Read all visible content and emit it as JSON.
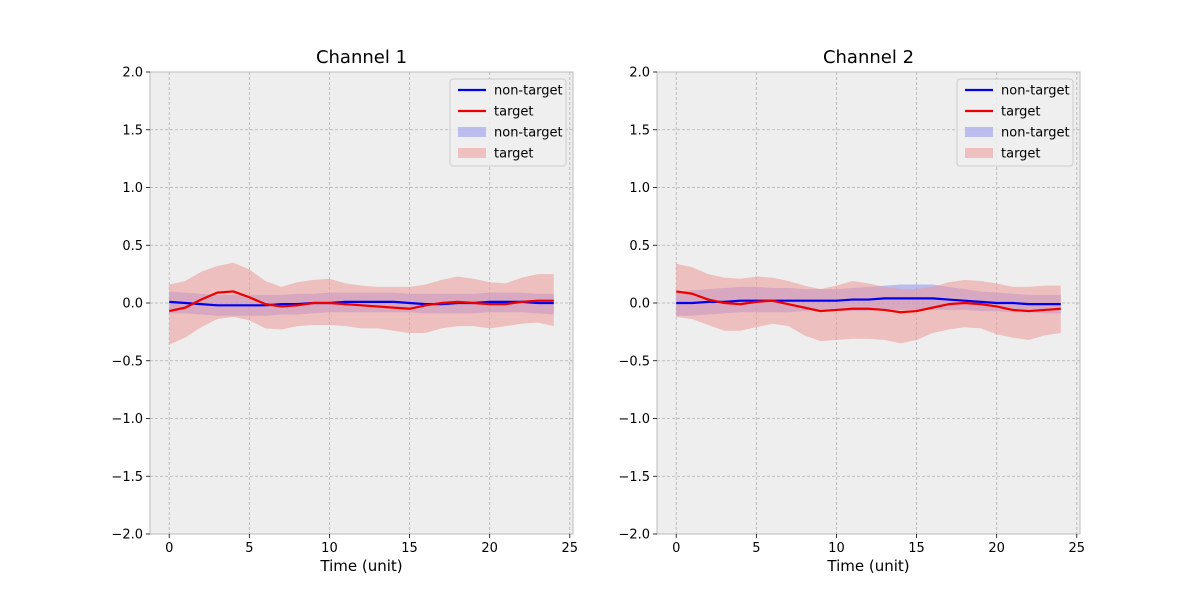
{
  "chart_data": [
    {
      "type": "line",
      "title": "Channel 1",
      "xlabel": "Time (unit)",
      "ylabel": "",
      "xlim": [
        -1.2,
        25.2
      ],
      "ylim": [
        -2.0,
        2.0
      ],
      "xticks": [
        0,
        5,
        10,
        15,
        20,
        25
      ],
      "yticks": [
        -2.0,
        -1.5,
        -1.0,
        -0.5,
        0.0,
        0.5,
        1.0,
        1.5,
        2.0
      ],
      "grid": true,
      "legend": "upper-right",
      "legend_entries": [
        "non-target",
        "target",
        "non-target",
        "target"
      ],
      "x": [
        0,
        1,
        2,
        3,
        4,
        5,
        6,
        7,
        8,
        9,
        10,
        11,
        12,
        13,
        14,
        15,
        16,
        17,
        18,
        19,
        20,
        21,
        22,
        23,
        24
      ],
      "series": [
        {
          "name": "non-target",
          "color": "#0000ee",
          "fill_color": "#9999ee",
          "values": [
            0.01,
            0.0,
            -0.01,
            -0.02,
            -0.02,
            -0.02,
            -0.02,
            -0.01,
            -0.01,
            0.0,
            0.0,
            0.01,
            0.01,
            0.01,
            0.01,
            0.0,
            -0.01,
            -0.01,
            0.0,
            0.0,
            0.01,
            0.01,
            0.01,
            0.0,
            0.0
          ],
          "upper": [
            0.1,
            0.09,
            0.08,
            0.07,
            0.07,
            0.07,
            0.07,
            0.07,
            0.08,
            0.08,
            0.09,
            0.09,
            0.09,
            0.09,
            0.09,
            0.08,
            0.08,
            0.08,
            0.08,
            0.08,
            0.09,
            0.09,
            0.09,
            0.08,
            0.08
          ],
          "lower": [
            -0.09,
            -0.09,
            -0.1,
            -0.11,
            -0.11,
            -0.11,
            -0.11,
            -0.1,
            -0.1,
            -0.09,
            -0.08,
            -0.08,
            -0.08,
            -0.08,
            -0.08,
            -0.08,
            -0.09,
            -0.09,
            -0.09,
            -0.09,
            -0.08,
            -0.08,
            -0.08,
            -0.09,
            -0.1
          ]
        },
        {
          "name": "target",
          "color": "#ee0000",
          "fill_color": "#ee9999",
          "values": [
            -0.07,
            -0.04,
            0.03,
            0.09,
            0.1,
            0.05,
            -0.01,
            -0.03,
            -0.02,
            0.0,
            0.0,
            -0.01,
            -0.02,
            -0.03,
            -0.04,
            -0.05,
            -0.02,
            0.0,
            0.01,
            0.0,
            -0.01,
            -0.01,
            0.01,
            0.02,
            0.02
          ],
          "upper": [
            0.16,
            0.19,
            0.27,
            0.32,
            0.35,
            0.29,
            0.19,
            0.14,
            0.18,
            0.2,
            0.21,
            0.17,
            0.15,
            0.14,
            0.14,
            0.14,
            0.16,
            0.2,
            0.23,
            0.21,
            0.18,
            0.17,
            0.22,
            0.25,
            0.25
          ],
          "lower": [
            -0.36,
            -0.3,
            -0.21,
            -0.14,
            -0.12,
            -0.15,
            -0.22,
            -0.23,
            -0.2,
            -0.19,
            -0.19,
            -0.2,
            -0.22,
            -0.22,
            -0.24,
            -0.26,
            -0.26,
            -0.22,
            -0.2,
            -0.2,
            -0.22,
            -0.2,
            -0.18,
            -0.17,
            -0.2
          ]
        }
      ]
    },
    {
      "type": "line",
      "title": "Channel 2",
      "xlabel": "Time (unit)",
      "ylabel": "",
      "xlim": [
        -1.2,
        25.2
      ],
      "ylim": [
        -2.0,
        2.0
      ],
      "xticks": [
        0,
        5,
        10,
        15,
        20,
        25
      ],
      "yticks": [
        -2.0,
        -1.5,
        -1.0,
        -0.5,
        0.0,
        0.5,
        1.0,
        1.5,
        2.0
      ],
      "grid": true,
      "legend": "upper-right",
      "legend_entries": [
        "non-target",
        "target",
        "non-target",
        "target"
      ],
      "x": [
        0,
        1,
        2,
        3,
        4,
        5,
        6,
        7,
        8,
        9,
        10,
        11,
        12,
        13,
        14,
        15,
        16,
        17,
        18,
        19,
        20,
        21,
        22,
        23,
        24
      ],
      "series": [
        {
          "name": "non-target",
          "color": "#0000ee",
          "fill_color": "#9999ee",
          "values": [
            0.0,
            0.0,
            0.01,
            0.01,
            0.02,
            0.02,
            0.02,
            0.02,
            0.02,
            0.02,
            0.02,
            0.03,
            0.03,
            0.04,
            0.04,
            0.04,
            0.04,
            0.03,
            0.02,
            0.01,
            0.0,
            0.0,
            -0.01,
            -0.01,
            -0.01
          ],
          "upper": [
            0.1,
            0.11,
            0.12,
            0.13,
            0.14,
            0.14,
            0.13,
            0.13,
            0.12,
            0.12,
            0.12,
            0.13,
            0.14,
            0.15,
            0.16,
            0.16,
            0.16,
            0.14,
            0.12,
            0.1,
            0.09,
            0.08,
            0.07,
            0.07,
            0.07
          ],
          "lower": [
            -0.11,
            -0.11,
            -0.1,
            -0.09,
            -0.08,
            -0.08,
            -0.08,
            -0.08,
            -0.07,
            -0.07,
            -0.07,
            -0.07,
            -0.07,
            -0.06,
            -0.06,
            -0.06,
            -0.06,
            -0.06,
            -0.06,
            -0.07,
            -0.07,
            -0.08,
            -0.08,
            -0.09,
            -0.09
          ]
        },
        {
          "name": "target",
          "color": "#ee0000",
          "fill_color": "#ee9999",
          "values": [
            0.1,
            0.08,
            0.03,
            0.0,
            -0.01,
            0.01,
            0.02,
            -0.01,
            -0.04,
            -0.07,
            -0.06,
            -0.05,
            -0.05,
            -0.06,
            -0.08,
            -0.07,
            -0.04,
            -0.01,
            0.0,
            -0.01,
            -0.03,
            -0.06,
            -0.07,
            -0.06,
            -0.05
          ],
          "upper": [
            0.34,
            0.31,
            0.25,
            0.22,
            0.21,
            0.23,
            0.22,
            0.19,
            0.15,
            0.12,
            0.15,
            0.19,
            0.17,
            0.14,
            0.12,
            0.12,
            0.14,
            0.18,
            0.2,
            0.19,
            0.17,
            0.14,
            0.14,
            0.15,
            0.15
          ],
          "lower": [
            -0.12,
            -0.14,
            -0.19,
            -0.24,
            -0.24,
            -0.21,
            -0.18,
            -0.2,
            -0.28,
            -0.33,
            -0.32,
            -0.31,
            -0.31,
            -0.32,
            -0.35,
            -0.32,
            -0.26,
            -0.23,
            -0.21,
            -0.22,
            -0.27,
            -0.3,
            -0.32,
            -0.28,
            -0.26
          ]
        }
      ]
    }
  ]
}
